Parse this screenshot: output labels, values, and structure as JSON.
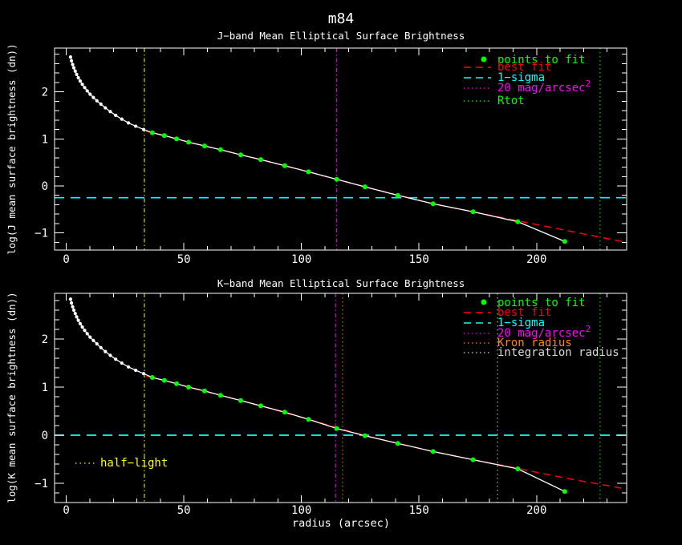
{
  "title": "m84",
  "xlabel": "radius (arcsec)",
  "background": "#000000",
  "axis_color": "#ffffff",
  "chart_data": [
    {
      "type": "line",
      "subtitle": "J−band Mean Elliptical Surface Brightness",
      "ylabel": "log(J mean surface brightness (dn))",
      "xrange": [
        -5,
        238.3
      ],
      "yrange": [
        -1.363,
        2.93
      ],
      "xticks": [
        0,
        50,
        100,
        150,
        200
      ],
      "yticks": [
        -1,
        0,
        1,
        2
      ],
      "xminor_step": 10,
      "yminor_step": 0.2,
      "grid": false,
      "series": [
        {
          "name": "profile",
          "role": "profile",
          "color": "#ffffff",
          "marker_until_x": 34,
          "x": [
            1.8,
            2.2,
            2.7,
            3.2,
            3.8,
            4.4,
            5.1,
            5.9,
            6.8,
            7.8,
            8.9,
            10.1,
            11.5,
            13,
            14.7,
            16.6,
            18.7,
            21,
            23.6,
            26.4,
            29.5,
            32.9,
            36.6,
            41.7,
            46.9,
            52,
            58.8,
            65.6,
            74.2,
            82.7,
            92.9,
            103,
            115,
            127,
            141,
            156,
            173,
            192,
            212
          ],
          "y": [
            2.74,
            2.66,
            2.58,
            2.51,
            2.44,
            2.37,
            2.3,
            2.23,
            2.16,
            2.09,
            2.02,
            1.95,
            1.88,
            1.81,
            1.74,
            1.66,
            1.58,
            1.5,
            1.42,
            1.34,
            1.27,
            1.2,
            1.13,
            1.07,
            1.0,
            0.93,
            0.85,
            0.77,
            0.66,
            0.56,
            0.43,
            0.3,
            0.14,
            -0.02,
            -0.2,
            -0.38,
            -0.55,
            -0.76,
            -1.18
          ]
        },
        {
          "name": "points to fit",
          "role": "points",
          "color": "#00ff00",
          "x": [
            36.6,
            41.7,
            46.9,
            52,
            58.8,
            65.6,
            74.2,
            82.7,
            92.9,
            103,
            115,
            127,
            141,
            156,
            173,
            192,
            212
          ],
          "y": [
            1.13,
            1.07,
            1.0,
            0.93,
            0.85,
            0.77,
            0.66,
            0.56,
            0.43,
            0.3,
            0.14,
            -0.02,
            -0.2,
            -0.38,
            -0.55,
            -0.76,
            -1.18
          ]
        },
        {
          "name": "best fit",
          "role": "fit",
          "color": "#ff0000",
          "style": "dashed",
          "x": [
            34,
            41.7,
            52,
            65.6,
            82.7,
            103,
            127,
            156,
            173,
            192,
            212,
            238.3
          ],
          "y": [
            1.16,
            1.07,
            0.93,
            0.77,
            0.56,
            0.3,
            -0.02,
            -0.38,
            -0.55,
            -0.74,
            -0.94,
            -1.2
          ]
        }
      ],
      "hlines": [
        {
          "name": "1-sigma",
          "y": -0.25,
          "color": "#00ffff",
          "style": "dashed"
        }
      ],
      "vlines": [
        {
          "name": "half-light",
          "x": 33.2,
          "color": "#ffff00",
          "style": "dashdot"
        },
        {
          "name": "20-mag-arcsec2",
          "x": 115,
          "color": "#ff00ff",
          "style": "dashdot"
        },
        {
          "name": "rtot",
          "x": 227,
          "color": "#00ff00",
          "style": "dotted"
        }
      ],
      "legend": {
        "position": "top-right",
        "entries": [
          {
            "label": "points to fit",
            "color": "#00ff00",
            "swatch": "dot"
          },
          {
            "label": "best fit",
            "color": "#ff0000",
            "swatch": "dashed"
          },
          {
            "label": "1−sigma",
            "color": "#00ffff",
            "swatch": "dashed"
          },
          {
            "label": "20 mag/arcsec",
            "sup": "2",
            "color": "#ff00ff",
            "swatch": "dotted"
          },
          {
            "label": "Rtot",
            "color": "#00ff00",
            "swatch": "dotted"
          }
        ]
      }
    },
    {
      "type": "line",
      "subtitle": "K−band Mean Elliptical Surface Brightness",
      "ylabel": "log(K mean surface brightness (dn))",
      "xrange": [
        -5,
        238.3
      ],
      "yrange": [
        -1.4,
        2.95
      ],
      "xticks": [
        0,
        50,
        100,
        150,
        200
      ],
      "yticks": [
        -1,
        0,
        1,
        2
      ],
      "xminor_step": 10,
      "yminor_step": 0.2,
      "grid": false,
      "series": [
        {
          "name": "profile",
          "role": "profile",
          "color": "#ffffff",
          "marker_until_x": 34,
          "x": [
            1.8,
            2.2,
            2.7,
            3.2,
            3.8,
            4.4,
            5.1,
            5.9,
            6.8,
            7.8,
            8.9,
            10.1,
            11.5,
            13,
            14.7,
            16.6,
            18.7,
            21,
            23.6,
            26.4,
            29.5,
            32.9,
            36.6,
            41.7,
            46.9,
            52,
            58.8,
            65.6,
            74.2,
            82.7,
            92.9,
            103,
            115,
            127,
            141,
            156,
            173,
            192,
            212
          ],
          "y": [
            2.83,
            2.75,
            2.67,
            2.6,
            2.53,
            2.46,
            2.39,
            2.32,
            2.25,
            2.18,
            2.11,
            2.04,
            1.97,
            1.9,
            1.82,
            1.74,
            1.66,
            1.58,
            1.5,
            1.42,
            1.35,
            1.28,
            1.2,
            1.14,
            1.07,
            1.0,
            0.92,
            0.83,
            0.72,
            0.61,
            0.48,
            0.33,
            0.14,
            -0.01,
            -0.17,
            -0.34,
            -0.51,
            -0.7,
            -1.17
          ]
        },
        {
          "name": "points to fit",
          "role": "points",
          "color": "#00ff00",
          "x": [
            36.6,
            41.7,
            46.9,
            52,
            58.8,
            65.6,
            74.2,
            82.7,
            92.9,
            103,
            115,
            127,
            141,
            156,
            173,
            192,
            212
          ],
          "y": [
            1.2,
            1.14,
            1.07,
            1.0,
            0.92,
            0.83,
            0.72,
            0.61,
            0.48,
            0.33,
            0.14,
            -0.01,
            -0.17,
            -0.34,
            -0.51,
            -0.7,
            -1.17
          ]
        },
        {
          "name": "best fit",
          "role": "fit",
          "color": "#ff0000",
          "style": "dashed",
          "x": [
            34,
            41.7,
            52,
            65.6,
            82.7,
            103,
            127,
            156,
            173,
            192,
            212,
            238.3
          ],
          "y": [
            1.23,
            1.14,
            1.0,
            0.83,
            0.61,
            0.33,
            -0.01,
            -0.34,
            -0.51,
            -0.69,
            -0.89,
            -1.12
          ]
        }
      ],
      "hlines": [
        {
          "name": "1-sigma",
          "y": 0.0,
          "color": "#00ffff",
          "style": "dashed"
        }
      ],
      "vlines": [
        {
          "name": "half-light",
          "x": 33.2,
          "color": "#ffff00",
          "style": "dashdot"
        },
        {
          "name": "20-mag-arcsec2",
          "x": 114.5,
          "color": "#ff00ff",
          "style": "dashdot"
        },
        {
          "name": "kron-radius",
          "x": 117.5,
          "color": "#ff8700",
          "style": "dotted"
        },
        {
          "name": "integration-radius",
          "x": 183.4,
          "color": "#d9d9d9",
          "style": "dotted"
        },
        {
          "name": "rtot",
          "x": 227,
          "color": "#00ff00",
          "style": "dotted"
        }
      ],
      "legend": {
        "position": "top-right",
        "entries": [
          {
            "label": "points to fit",
            "color": "#00ff00",
            "swatch": "dot"
          },
          {
            "label": "best fit",
            "color": "#ff0000",
            "swatch": "dashed"
          },
          {
            "label": "1−sigma",
            "color": "#00ffff",
            "swatch": "dashed"
          },
          {
            "label": "20 mag/arcsec",
            "sup": "2",
            "color": "#ff00ff",
            "swatch": "dotted"
          },
          {
            "label": "Kron radius",
            "color": "#ff8700",
            "swatch": "dotted"
          },
          {
            "label": "integration radius",
            "color": "#d9d9d9",
            "swatch": "dotted"
          }
        ]
      },
      "annotation": {
        "label": "half−light",
        "color": "#ffff00",
        "swatch": "dotted"
      }
    }
  ]
}
